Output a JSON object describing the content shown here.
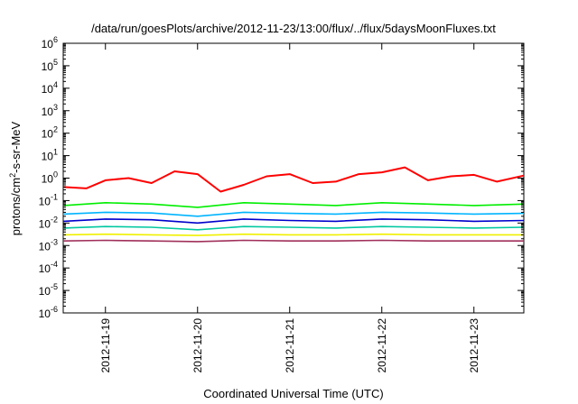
{
  "chart_data": {
    "type": "line",
    "title": "/data/run/goesPlots/archive/2012-11-23/13:00/flux/../flux/5daysMoonFluxes.txt",
    "xlabel": "Coordinated Universal Time (UTC)",
    "ylabel_parts": {
      "base": "protons/cm",
      "sup": "2",
      "rest": "-s-sr-MeV"
    },
    "y_scale": "log",
    "ylim": [
      1e-06,
      1000000.0
    ],
    "y_ticks": [
      {
        "base": "10",
        "exp": "-6",
        "value": 1e-06
      },
      {
        "base": "10",
        "exp": "-5",
        "value": 1e-05
      },
      {
        "base": "10",
        "exp": "-4",
        "value": 0.0001
      },
      {
        "base": "10",
        "exp": "-3",
        "value": 0.001
      },
      {
        "base": "10",
        "exp": "-2",
        "value": 0.01
      },
      {
        "base": "10",
        "exp": "-1",
        "value": 0.1
      },
      {
        "base": "10",
        "exp": "0",
        "value": 1
      },
      {
        "base": "10",
        "exp": "1",
        "value": 10
      },
      {
        "base": "10",
        "exp": "2",
        "value": 100
      },
      {
        "base": "10",
        "exp": "3",
        "value": 1000
      },
      {
        "base": "10",
        "exp": "4",
        "value": 10000
      },
      {
        "base": "10",
        "exp": "5",
        "value": 100000
      },
      {
        "base": "10",
        "exp": "6",
        "value": 1000000
      }
    ],
    "xlim": [
      "2012-11-18 13:00",
      "2012-11-23 13:00"
    ],
    "x_ticks": [
      {
        "label": "2012-11-19",
        "time": "2012-11-19 00:00"
      },
      {
        "label": "2012-11-20",
        "time": "2012-11-20 00:00"
      },
      {
        "label": "2012-11-21",
        "time": "2012-11-21 00:00"
      },
      {
        "label": "2012-11-22",
        "time": "2012-11-22 00:00"
      },
      {
        "label": "2012-11-23",
        "time": "2012-11-23 00:00"
      }
    ],
    "grid": false,
    "series": [
      {
        "color": "#ff0000",
        "times": [
          "2012-11-18 13:00",
          "2012-11-18 19:00",
          "2012-11-19 00:00",
          "2012-11-19 06:00",
          "2012-11-19 12:00",
          "2012-11-19 18:00",
          "2012-11-20 00:00",
          "2012-11-20 06:00",
          "2012-11-20 12:00",
          "2012-11-20 18:00",
          "2012-11-21 00:00",
          "2012-11-21 06:00",
          "2012-11-21 12:00",
          "2012-11-21 18:00",
          "2012-11-22 00:00",
          "2012-11-22 06:00",
          "2012-11-22 12:00",
          "2012-11-22 18:00",
          "2012-11-23 00:00",
          "2012-11-23 06:00",
          "2012-11-23 13:00"
        ],
        "values": [
          0.4,
          0.35,
          0.8,
          1.0,
          0.6,
          2.0,
          1.5,
          0.25,
          0.5,
          1.2,
          1.5,
          0.6,
          0.7,
          1.5,
          1.8,
          3.0,
          0.8,
          1.2,
          1.4,
          0.7,
          1.3
        ]
      },
      {
        "color": "#00ee00",
        "times": [
          "2012-11-18 13:00",
          "2012-11-19 00:00",
          "2012-11-19 12:00",
          "2012-11-20 00:00",
          "2012-11-20 12:00",
          "2012-11-21 00:00",
          "2012-11-21 12:00",
          "2012-11-22 00:00",
          "2012-11-22 12:00",
          "2012-11-23 00:00",
          "2012-11-23 13:00"
        ],
        "values": [
          0.06,
          0.08,
          0.07,
          0.05,
          0.08,
          0.07,
          0.06,
          0.08,
          0.07,
          0.06,
          0.07
        ]
      },
      {
        "color": "#00b4ff",
        "times": [
          "2012-11-18 13:00",
          "2012-11-19 00:00",
          "2012-11-19 12:00",
          "2012-11-20 00:00",
          "2012-11-20 12:00",
          "2012-11-21 00:00",
          "2012-11-21 12:00",
          "2012-11-22 00:00",
          "2012-11-22 12:00",
          "2012-11-23 00:00",
          "2012-11-23 13:00"
        ],
        "values": [
          0.025,
          0.03,
          0.028,
          0.02,
          0.03,
          0.027,
          0.025,
          0.03,
          0.028,
          0.025,
          0.027
        ]
      },
      {
        "color": "#0000cc",
        "times": [
          "2012-11-18 13:00",
          "2012-11-19 00:00",
          "2012-11-19 12:00",
          "2012-11-20 00:00",
          "2012-11-20 12:00",
          "2012-11-21 00:00",
          "2012-11-21 12:00",
          "2012-11-22 00:00",
          "2012-11-22 12:00",
          "2012-11-23 00:00",
          "2012-11-23 13:00"
        ],
        "values": [
          0.012,
          0.015,
          0.014,
          0.01,
          0.015,
          0.013,
          0.012,
          0.015,
          0.014,
          0.012,
          0.013
        ]
      },
      {
        "color": "#00c8a0",
        "times": [
          "2012-11-18 13:00",
          "2012-11-19 00:00",
          "2012-11-19 12:00",
          "2012-11-20 00:00",
          "2012-11-20 12:00",
          "2012-11-21 00:00",
          "2012-11-21 12:00",
          "2012-11-22 00:00",
          "2012-11-22 12:00",
          "2012-11-23 00:00",
          "2012-11-23 13:00"
        ],
        "values": [
          0.006,
          0.007,
          0.0065,
          0.005,
          0.007,
          0.0065,
          0.006,
          0.007,
          0.0065,
          0.006,
          0.0065
        ]
      },
      {
        "color": "#f0f000",
        "times": [
          "2012-11-18 13:00",
          "2012-11-19 00:00",
          "2012-11-19 12:00",
          "2012-11-20 00:00",
          "2012-11-20 12:00",
          "2012-11-21 00:00",
          "2012-11-21 12:00",
          "2012-11-22 00:00",
          "2012-11-22 12:00",
          "2012-11-23 00:00",
          "2012-11-23 13:00"
        ],
        "values": [
          0.003,
          0.0032,
          0.003,
          0.0028,
          0.0032,
          0.003,
          0.003,
          0.0032,
          0.003,
          0.003,
          0.003
        ]
      },
      {
        "color": "#a0305a",
        "times": [
          "2012-11-18 13:00",
          "2012-11-19 00:00",
          "2012-11-19 12:00",
          "2012-11-20 00:00",
          "2012-11-20 12:00",
          "2012-11-21 00:00",
          "2012-11-21 12:00",
          "2012-11-22 00:00",
          "2012-11-22 12:00",
          "2012-11-23 00:00",
          "2012-11-23 13:00"
        ],
        "values": [
          0.0016,
          0.0017,
          0.0016,
          0.0015,
          0.0017,
          0.0016,
          0.0016,
          0.0017,
          0.0016,
          0.0016,
          0.0016
        ]
      }
    ]
  }
}
